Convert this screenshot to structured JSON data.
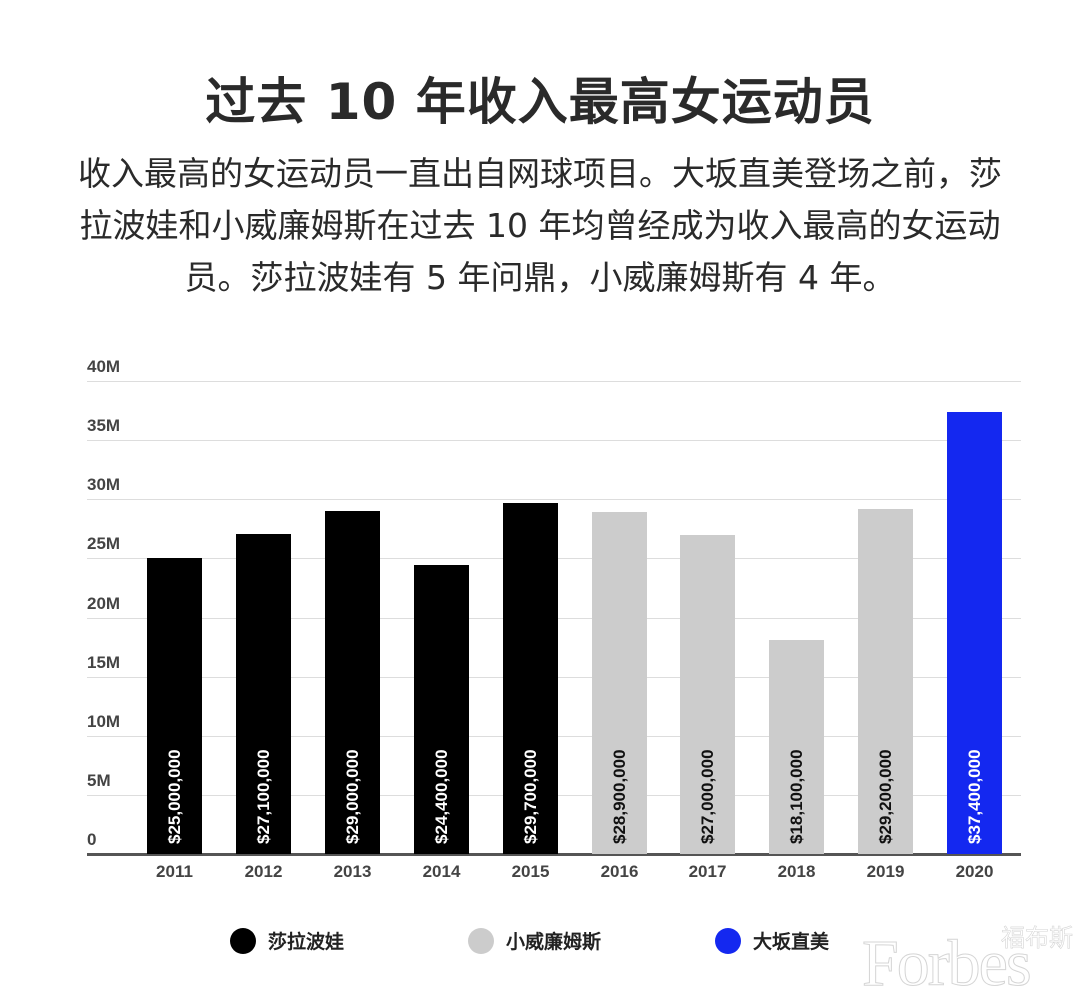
{
  "header": {
    "title": "过去 10 年收入最高女运动员",
    "subtitle_lines": [
      "收入最高的女运动员一直出自网球项目。大坂直美登场之前，莎",
      "拉波娃和小威廉姆斯在过去 10 年均曾经成为收入最高的女运动",
      "员。莎拉波娃有 5 年问鼎，小威廉姆斯有 4 年。"
    ]
  },
  "chart_data": {
    "type": "bar",
    "title": "过去 10 年收入最高女运动员",
    "xlabel": "",
    "ylabel": "",
    "ylim": [
      0,
      40000000
    ],
    "yticks": [
      "0",
      "5M",
      "10M",
      "15M",
      "20M",
      "25M",
      "30M",
      "35M",
      "40M"
    ],
    "grid": true,
    "legend_position": "bottom",
    "categories": [
      "2011",
      "2012",
      "2013",
      "2014",
      "2015",
      "2016",
      "2017",
      "2018",
      "2019",
      "2020"
    ],
    "values": [
      25000000,
      27100000,
      29000000,
      24400000,
      29700000,
      28900000,
      27000000,
      18100000,
      29200000,
      37400000
    ],
    "data_labels": [
      "$25,000,000",
      "$27,100,000",
      "$29,000,000",
      "$24,400,000",
      "$29,700,000",
      "$28,900,000",
      "$27,000,000",
      "$18,100,000",
      "$29,200,000",
      "$37,400,000"
    ],
    "athletes": [
      "莎拉波娃",
      "莎拉波娃",
      "莎拉波娃",
      "莎拉波娃",
      "莎拉波娃",
      "小威廉姆斯",
      "小威廉姆斯",
      "小威廉姆斯",
      "小威廉姆斯",
      "大坂直美"
    ],
    "series": [
      {
        "name": "莎拉波娃",
        "color": "#000000",
        "years": [
          "2011",
          "2012",
          "2013",
          "2014",
          "2015"
        ],
        "values": [
          25000000,
          27100000,
          29000000,
          24400000,
          29700000
        ]
      },
      {
        "name": "小威廉姆斯",
        "color": "#cccccc",
        "years": [
          "2016",
          "2017",
          "2018",
          "2019"
        ],
        "values": [
          28900000,
          27000000,
          18100000,
          29200000
        ]
      },
      {
        "name": "大坂直美",
        "color": "#1428f0",
        "years": [
          "2020"
        ],
        "values": [
          37400000
        ]
      }
    ]
  },
  "legend": [
    {
      "label": "莎拉波娃",
      "color": "#000000"
    },
    {
      "label": "小威廉姆斯",
      "color": "#cccccc"
    },
    {
      "label": "大坂直美",
      "color": "#1428f0"
    }
  ],
  "label_colors": {
    "#000000": "#ffffff",
    "#cccccc": "#111111",
    "#1428f0": "#ffffff"
  },
  "watermark": {
    "en": "Forbes",
    "cn": "福布斯"
  }
}
